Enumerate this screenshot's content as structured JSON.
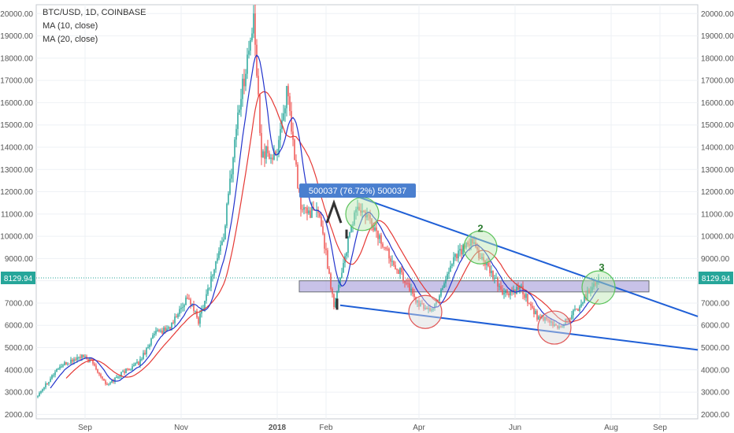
{
  "chart_data": {
    "type": "candlestick",
    "title": "BTC/USD, 1D, COINBASE",
    "indicators": [
      {
        "name": "MA (10, close)",
        "color": "#2233cc"
      },
      {
        "name": "MA (20, close)",
        "color": "#e53935"
      }
    ],
    "y_ticks": [
      2000,
      3000,
      4000,
      5000,
      6000,
      7000,
      8000,
      9000,
      10000,
      11000,
      12000,
      13000,
      14000,
      15000,
      16000,
      17000,
      18000,
      19000,
      20000
    ],
    "y_tick_labels": [
      "2000.00",
      "3000.00",
      "4000.00",
      "5000.00",
      "6000.00",
      "7000.00",
      "8000.00",
      "9000.00",
      "10000.00",
      "11000.00",
      "12000.00",
      "13000.00",
      "14000.00",
      "15000.00",
      "16000.00",
      "17000.00",
      "18000.00",
      "19000.00",
      "20000.00"
    ],
    "ylim": [
      1800,
      20400
    ],
    "x_labels": [
      "Sep",
      "Nov",
      "2018",
      "Feb",
      "Apr",
      "Jun",
      "Aug",
      "Sep"
    ],
    "x_label_dates": [
      "2017-09-01",
      "2017-11-01",
      "2018-01-01",
      "2018-02-01",
      "2018-04-01",
      "2018-06-01",
      "2018-08-01",
      "2018-09-01"
    ],
    "x_range": [
      "2017-08-01",
      "2018-09-25"
    ],
    "last_price": "8129.94",
    "last_price_value": 8129.94,
    "measure_label": "500037 (76.72%) 500037",
    "pattern_labels": [
      "2",
      "3"
    ],
    "colors": {
      "up": "#26a69a",
      "down": "#ef5350",
      "grid": "#eef1f5",
      "trendline": "#1f5fd6",
      "support_zone": "#9b8fd6",
      "last_price_bg": "#26a69a",
      "measure_bg": "#4a7fcf"
    },
    "price_path": [
      [
        "2017-08-01",
        2800
      ],
      [
        "2017-08-15",
        4100
      ],
      [
        "2017-08-29",
        4600
      ],
      [
        "2017-09-05",
        4400
      ],
      [
        "2017-09-15",
        3300
      ],
      [
        "2017-09-25",
        3900
      ],
      [
        "2017-10-05",
        4300
      ],
      [
        "2017-10-15",
        5600
      ],
      [
        "2017-10-25",
        5900
      ],
      [
        "2017-11-05",
        7300
      ],
      [
        "2017-11-12",
        6200
      ],
      [
        "2017-11-20",
        8100
      ],
      [
        "2017-11-28",
        10000
      ],
      [
        "2017-12-07",
        15500
      ],
      [
        "2017-12-17",
        19600
      ],
      [
        "2017-12-22",
        13800
      ],
      [
        "2017-12-31",
        13500
      ],
      [
        "2018-01-07",
        16500
      ],
      [
        "2018-01-16",
        11200
      ],
      [
        "2018-01-28",
        11000
      ],
      [
        "2018-02-06",
        6900
      ],
      [
        "2018-02-20",
        11300
      ],
      [
        "2018-03-01",
        10700
      ],
      [
        "2018-03-10",
        9500
      ],
      [
        "2018-03-20",
        8400
      ],
      [
        "2018-04-01",
        6900
      ],
      [
        "2018-04-10",
        6700
      ],
      [
        "2018-04-24",
        9200
      ],
      [
        "2018-05-05",
        9700
      ],
      [
        "2018-05-15",
        8500
      ],
      [
        "2018-05-25",
        7400
      ],
      [
        "2018-06-05",
        7600
      ],
      [
        "2018-06-15",
        6400
      ],
      [
        "2018-06-29",
        5900
      ],
      [
        "2018-07-10",
        6700
      ],
      [
        "2018-07-24",
        8200
      ]
    ],
    "trendlines": [
      {
        "points": [
          [
            "2018-02-20",
            11800
          ],
          [
            "2018-09-25",
            6400
          ]
        ]
      },
      {
        "points": [
          [
            "2018-02-10",
            6900
          ],
          [
            "2018-09-25",
            4900
          ]
        ]
      }
    ],
    "support_zone": {
      "x": [
        "2018-01-15",
        "2018-08-25"
      ],
      "y": [
        7500,
        8000
      ]
    },
    "circles": [
      {
        "date": "2018-02-24",
        "price": 11000,
        "color": "green"
      },
      {
        "date": "2018-04-05",
        "price": 6600,
        "color": "red"
      },
      {
        "date": "2018-05-10",
        "price": 9500,
        "color": "green"
      },
      {
        "date": "2018-06-26",
        "price": 5900,
        "color": "red"
      },
      {
        "date": "2018-07-24",
        "price": 7700,
        "color": "green"
      }
    ]
  }
}
